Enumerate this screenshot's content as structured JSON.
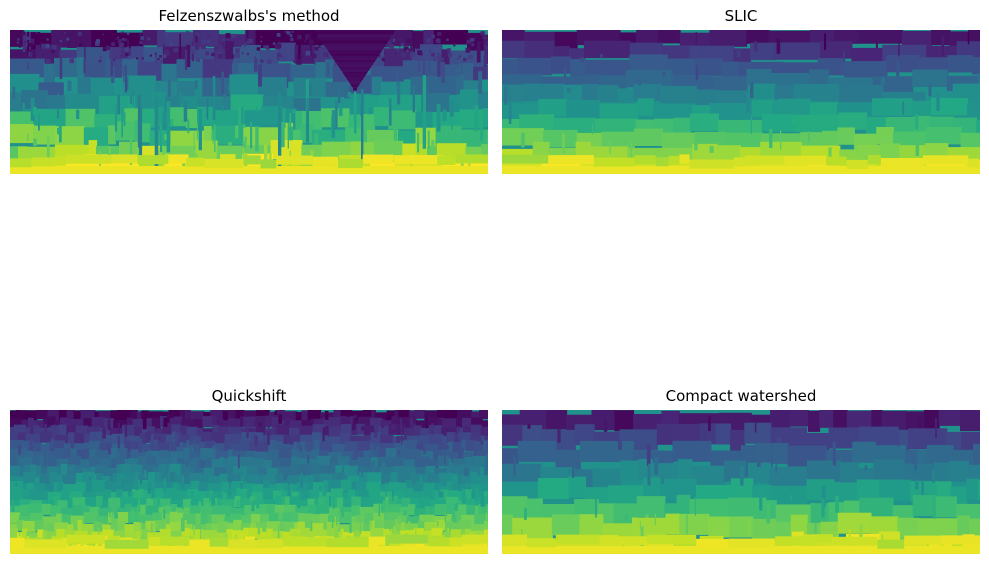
{
  "panels": [
    {
      "title": "Felzenszwalbs's method",
      "style": "felzenszwalb"
    },
    {
      "title": "SLIC",
      "style": "slic"
    },
    {
      "title": "Quickshift",
      "style": "quickshift"
    },
    {
      "title": "Compact watershed",
      "style": "watershed"
    }
  ],
  "colormap": "viridis",
  "colormap_stops": [
    "#440154",
    "#482475",
    "#414487",
    "#355f8d",
    "#2a788e",
    "#21918c",
    "#22a884",
    "#44bf70",
    "#7ad151",
    "#bddf26",
    "#fde725"
  ]
}
